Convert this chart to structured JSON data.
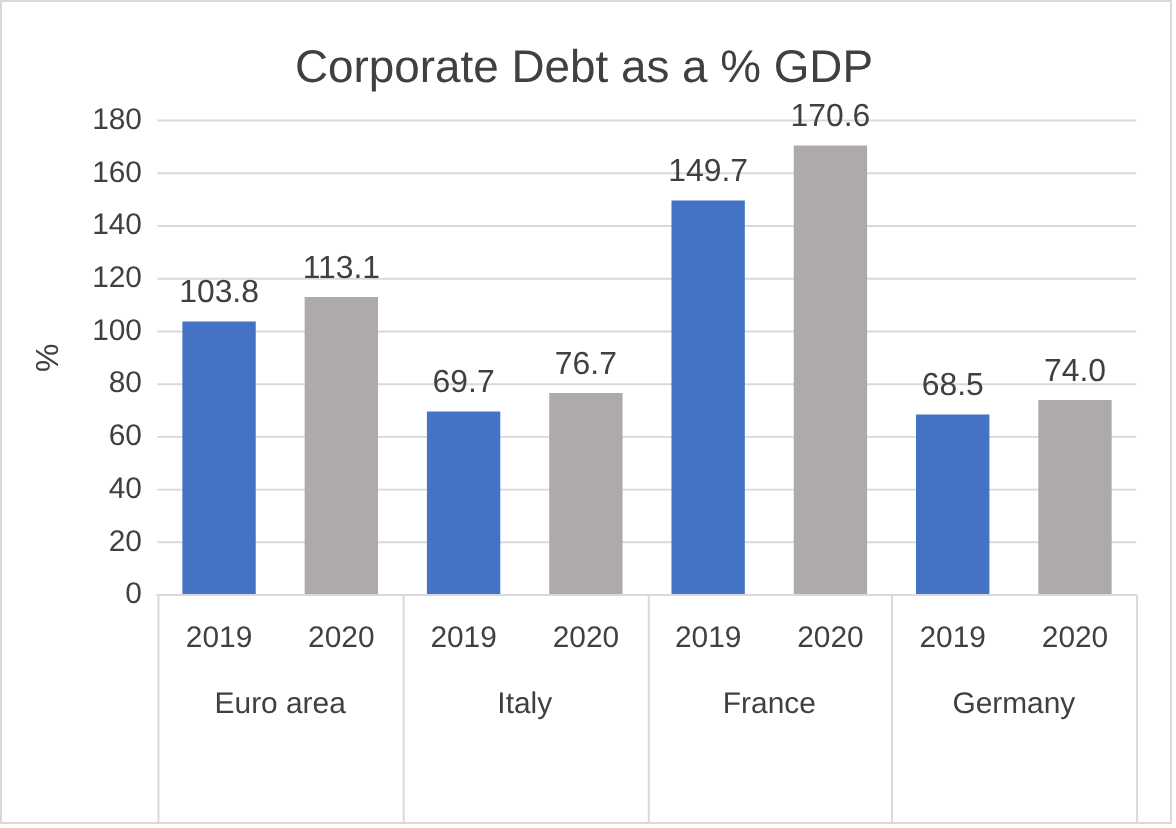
{
  "chart_data": {
    "type": "bar",
    "title": "Corporate Debt as a % GDP",
    "ylabel": "%",
    "categories": [
      "Euro area",
      "Italy",
      "France",
      "Germany"
    ],
    "series": [
      {
        "name": "2019",
        "color": "#4472c4",
        "values": [
          103.8,
          69.7,
          149.7,
          68.5
        ],
        "value_labels": [
          "103.8",
          "69.7",
          "149.7",
          "68.5"
        ]
      },
      {
        "name": "2020",
        "color": "#aeaaaa",
        "values": [
          113.1,
          76.7,
          170.6,
          74.0
        ],
        "value_labels": [
          "113.1",
          "76.7",
          "170.6",
          "74.0"
        ]
      }
    ],
    "ylim": [
      0,
      180
    ],
    "yticks": [
      0,
      20,
      40,
      60,
      80,
      100,
      120,
      140,
      160,
      180
    ],
    "grid": "y",
    "legend": false
  }
}
